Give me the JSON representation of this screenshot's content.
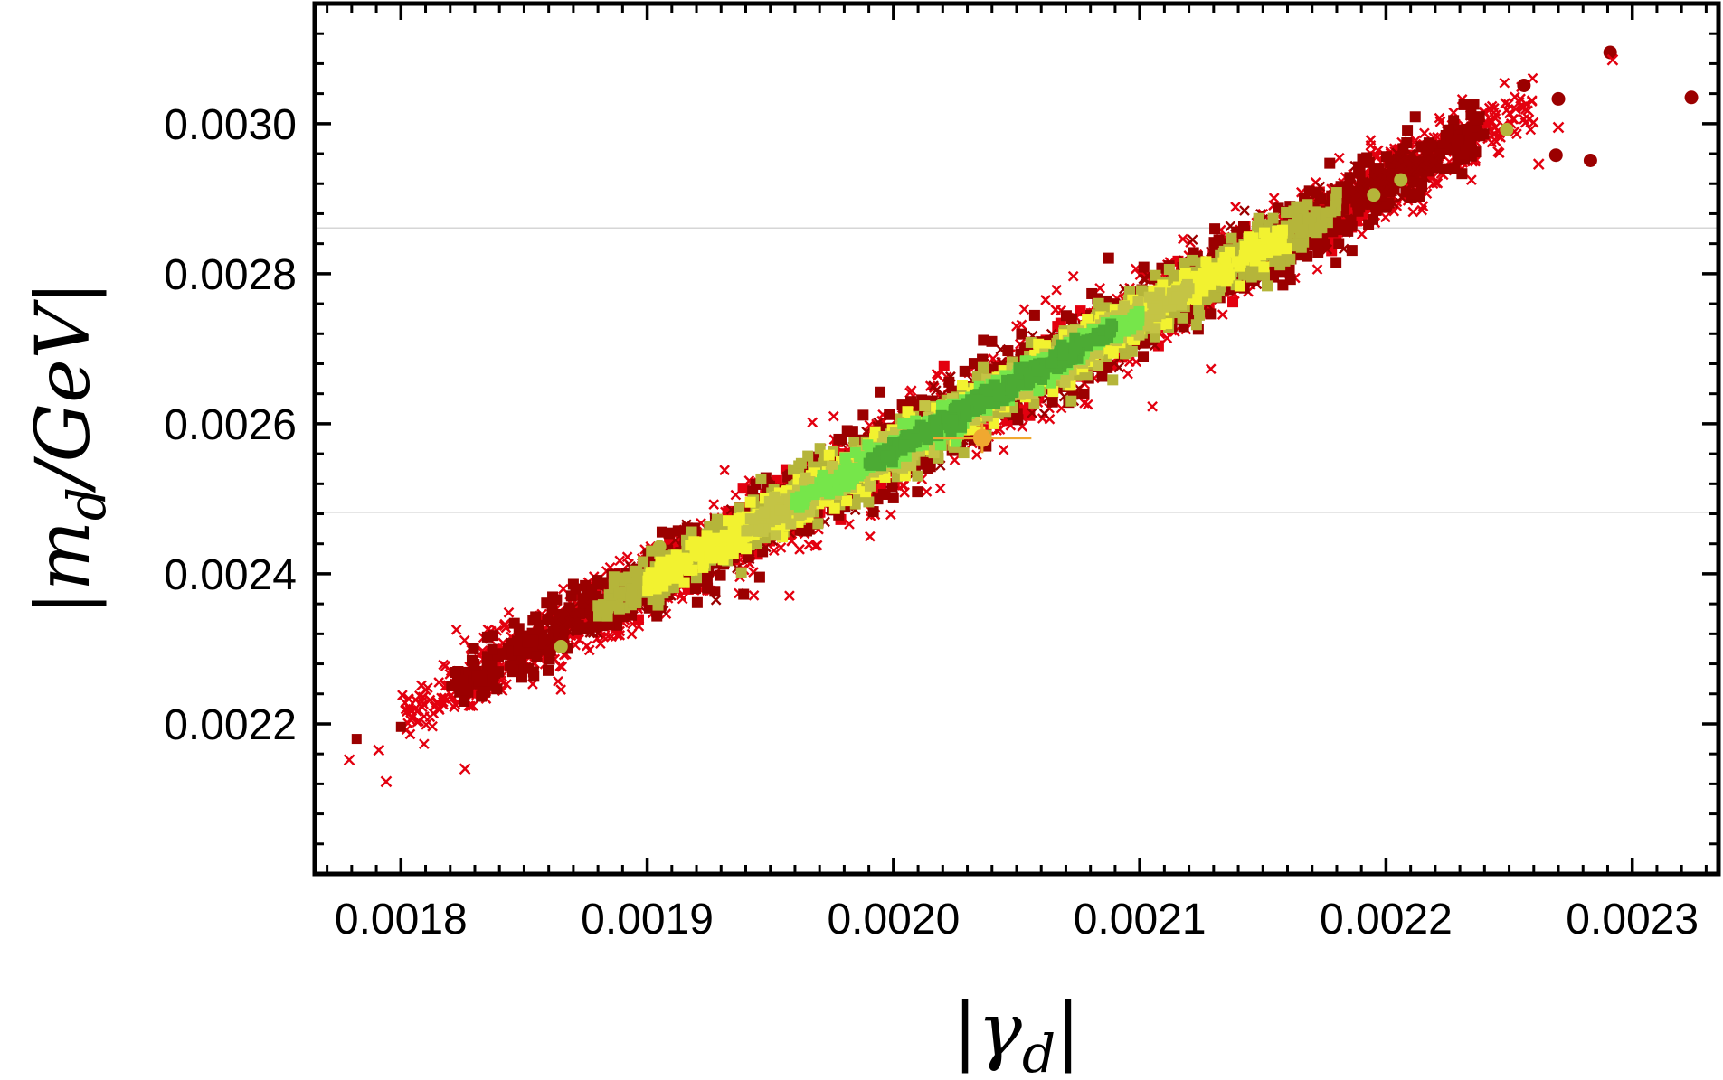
{
  "chart_data": {
    "type": "scatter",
    "xlabel": {
      "bar_left": "|",
      "main": "γ",
      "sub": "d",
      "bar_right": "|"
    },
    "ylabel": {
      "bar_left": "|",
      "main": "m",
      "sub": "d",
      "rest": "/GeV",
      "bar_right": "|"
    },
    "xlim": [
      0.001765,
      0.002335
    ],
    "ylim": [
      0.002,
      0.00316
    ],
    "x_ticks": [
      0.0018,
      0.0019,
      0.002,
      0.0021,
      0.0022,
      0.0023
    ],
    "x_tick_labels": [
      "0.0018",
      "0.0019",
      "0.0020",
      "0.0021",
      "0.0022",
      "0.0023"
    ],
    "y_ticks": [
      0.0022,
      0.0024,
      0.0026,
      0.0028,
      0.003
    ],
    "y_tick_labels": [
      "0.0022",
      "0.0024",
      "0.0026",
      "0.0028",
      "0.0030"
    ],
    "horizontal_reference_lines": [
      0.002482,
      0.002861
    ],
    "grid": false,
    "legend": "none",
    "band": {
      "slope": 1.78,
      "intercept": -0.000994
    },
    "layers": [
      {
        "color": "#e3000f",
        "width_sigma": 4.4e-05,
        "thickness": 6.4e-05,
        "x_range": [
          0.0018,
          0.00226
        ],
        "marker": "cross"
      },
      {
        "color": "#e3000f",
        "width_sigma": 1.5e-05,
        "thickness": 4e-05,
        "x_range": [
          0.00187,
          0.00222
        ],
        "marker": "square"
      },
      {
        "color": "#9b0000",
        "width_sigma": 3.8e-05,
        "thickness": 5.6e-05,
        "x_range": [
          0.00182,
          0.00224
        ],
        "marker": "square"
      },
      {
        "color": "#9b0000",
        "width_sigma": 3e-05,
        "thickness": 4.8e-05,
        "x_range": [
          0.00186,
          0.00222
        ],
        "marker": "cross"
      },
      {
        "color": "#b5b53a",
        "width_sigma": 2.4e-05,
        "thickness": 4.2e-05,
        "x_range": [
          0.00188,
          0.00218
        ],
        "marker": "square"
      },
      {
        "color": "#f2f230",
        "width_sigma": 1.8e-05,
        "thickness": 3e-05,
        "x_range": [
          0.0019,
          0.00216
        ],
        "marker": "square"
      },
      {
        "color": "#c4c445",
        "width_sigma": 1.6e-05,
        "thickness": 2.6e-05,
        "x_range": [
          0.00194,
          0.00212
        ],
        "marker": "square"
      },
      {
        "color": "#76e64a",
        "width_sigma": 1.2e-05,
        "thickness": 2e-05,
        "x_range": [
          0.00196,
          0.0021
        ],
        "marker": "square"
      },
      {
        "color": "#4cab34",
        "width_sigma": 8e-06,
        "thickness": 1.4e-05,
        "x_range": [
          0.00199,
          0.00209
        ],
        "marker": "square"
      }
    ],
    "outliers": [
      {
        "color": "#9b0000",
        "x": 0.002291,
        "y": 0.003095,
        "marker": "circle"
      },
      {
        "color": "#9b0000",
        "x": 0.002324,
        "y": 0.003035,
        "marker": "circle"
      },
      {
        "color": "#9b0000",
        "x": 0.002283,
        "y": 0.002951,
        "marker": "circle"
      },
      {
        "color": "#9b0000",
        "x": 0.00227,
        "y": 0.003033,
        "marker": "circle"
      },
      {
        "color": "#9b0000",
        "x": 0.002256,
        "y": 0.003051,
        "marker": "circle"
      },
      {
        "color": "#9b0000",
        "x": 0.002269,
        "y": 0.002958,
        "marker": "circle"
      },
      {
        "color": "#9b0000",
        "x": 0.001782,
        "y": 0.00218,
        "marker": "square"
      },
      {
        "color": "#9b0000",
        "x": 0.0018,
        "y": 0.002196,
        "marker": "square"
      },
      {
        "color": "#e3000f",
        "x": 0.001791,
        "y": 0.002165,
        "marker": "cross"
      },
      {
        "color": "#e3000f",
        "x": 0.001794,
        "y": 0.002123,
        "marker": "cross"
      },
      {
        "color": "#e3000f",
        "x": 0.001779,
        "y": 0.002152,
        "marker": "cross"
      },
      {
        "color": "#e3000f",
        "x": 0.001826,
        "y": 0.00214,
        "marker": "cross"
      },
      {
        "color": "#e3000f",
        "x": 0.002292,
        "y": 0.003085,
        "marker": "cross"
      },
      {
        "color": "#e3000f",
        "x": 0.00227,
        "y": 0.002995,
        "marker": "cross"
      },
      {
        "color": "#e3000f",
        "x": 0.002262,
        "y": 0.002946,
        "marker": "cross"
      },
      {
        "color": "#b5b53a",
        "x": 0.001865,
        "y": 0.002303,
        "marker": "circle"
      },
      {
        "color": "#b5b53a",
        "x": 0.001905,
        "y": 0.002436,
        "marker": "circle"
      },
      {
        "color": "#b5b53a",
        "x": 0.002249,
        "y": 0.002992,
        "marker": "circle"
      },
      {
        "color": "#b5b53a",
        "x": 0.002206,
        "y": 0.002925,
        "marker": "circle"
      },
      {
        "color": "#b5b53a",
        "x": 0.002195,
        "y": 0.002905,
        "marker": "circle"
      }
    ],
    "best_fit": {
      "x": 0.002036,
      "y": 0.002581,
      "xerr": 2e-05,
      "yerr": 2e-05,
      "color": "#f0a830"
    }
  }
}
